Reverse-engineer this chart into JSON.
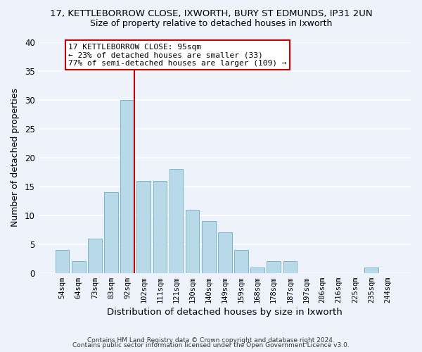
{
  "title_line1": "17, KETTLEBORROW CLOSE, IXWORTH, BURY ST EDMUNDS, IP31 2UN",
  "title_line2": "Size of property relative to detached houses in Ixworth",
  "xlabel": "Distribution of detached houses by size in Ixworth",
  "ylabel": "Number of detached properties",
  "bar_labels": [
    "54sqm",
    "64sqm",
    "73sqm",
    "83sqm",
    "92sqm",
    "102sqm",
    "111sqm",
    "121sqm",
    "130sqm",
    "140sqm",
    "149sqm",
    "159sqm",
    "168sqm",
    "178sqm",
    "187sqm",
    "197sqm",
    "206sqm",
    "216sqm",
    "225sqm",
    "235sqm",
    "244sqm"
  ],
  "bar_heights": [
    4,
    2,
    6,
    14,
    30,
    16,
    16,
    18,
    11,
    9,
    7,
    4,
    1,
    2,
    2,
    0,
    0,
    0,
    0,
    1,
    0
  ],
  "bar_color": "#b8d9e8",
  "bar_edge_color": "#7ab5cc",
  "highlight_line_color": "#cc0000",
  "ylim": [
    0,
    40
  ],
  "yticks": [
    0,
    5,
    10,
    15,
    20,
    25,
    30,
    35,
    40
  ],
  "annotation_box_text_line1": "17 KETTLEBORROW CLOSE: 95sqm",
  "annotation_box_text_line2": "← 23% of detached houses are smaller (33)",
  "annotation_box_text_line3": "77% of semi-detached houses are larger (109) →",
  "annotation_box_edge_color": "#cc0000",
  "footer_line1": "Contains HM Land Registry data © Crown copyright and database right 2024.",
  "footer_line2": "Contains public sector information licensed under the Open Government Licence v3.0.",
  "background_color": "#eef2fb",
  "grid_color": "#ffffff",
  "figsize": [
    6.0,
    5.0
  ],
  "dpi": 100
}
